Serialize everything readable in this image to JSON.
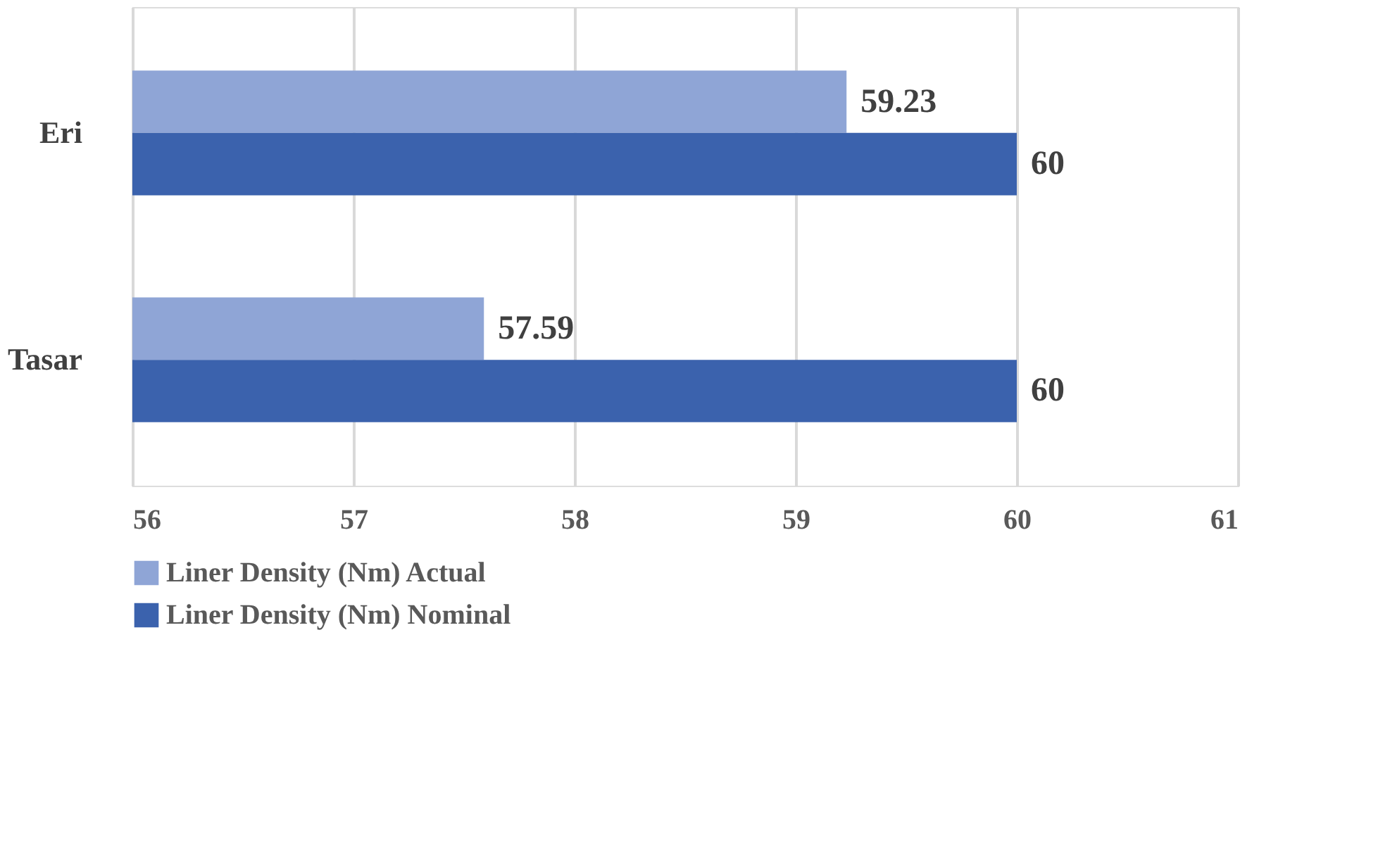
{
  "chart_data": {
    "type": "bar",
    "orientation": "horizontal",
    "categories": [
      "Eri",
      "Tasar"
    ],
    "series": [
      {
        "name": "Liner Density (Nm) Actual",
        "color": "#8fa5d6",
        "values": [
          59.23,
          57.59
        ]
      },
      {
        "name": "Liner Density (Nm) Nominal",
        "color": "#3b62ad",
        "values": [
          60,
          60
        ]
      }
    ],
    "xlim": [
      56,
      61
    ],
    "xticks": [
      56,
      57,
      58,
      59,
      60,
      61
    ],
    "grid": "x",
    "data_labels": true,
    "legend": "bottom"
  }
}
